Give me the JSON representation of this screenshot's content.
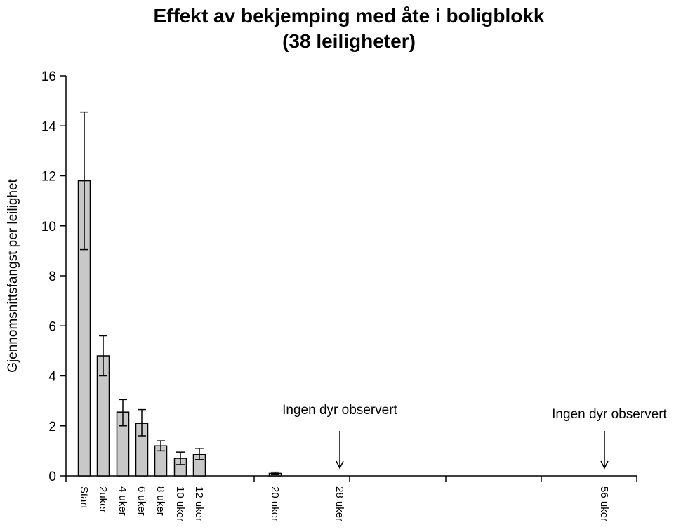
{
  "chart_data": {
    "type": "bar",
    "title": "Effekt av bekjemping med åte i boligblokk",
    "subtitle": "(38 leiligheter)",
    "xlabel": "",
    "ylabel": "Gjennomsnittsfangst per leilighet",
    "ylim": [
      0,
      16
    ],
    "yticks": [
      0,
      2,
      4,
      6,
      8,
      10,
      12,
      14,
      16
    ],
    "grid": false,
    "bar_color": "#c8c8c8",
    "categories": [
      "Start",
      "2uker",
      "4 uker",
      "6 uker",
      "8 uker",
      "10 uker",
      "12 uker",
      "20 uker",
      "28 uker",
      "56 uker"
    ],
    "values": [
      11.8,
      4.8,
      2.55,
      2.1,
      1.2,
      0.7,
      0.85,
      0.1,
      0,
      0
    ],
    "error_low": [
      9.05,
      4.0,
      2.0,
      1.6,
      1.0,
      0.45,
      0.65,
      0.05,
      null,
      null
    ],
    "error_high": [
      14.55,
      5.6,
      3.05,
      2.65,
      1.4,
      0.95,
      1.1,
      0.15,
      null,
      null
    ],
    "annotations": [
      {
        "text": "Ingen dyr observert",
        "category": "28 uker"
      },
      {
        "text": "Ingen dyr observert",
        "category": "56 uker"
      }
    ]
  }
}
